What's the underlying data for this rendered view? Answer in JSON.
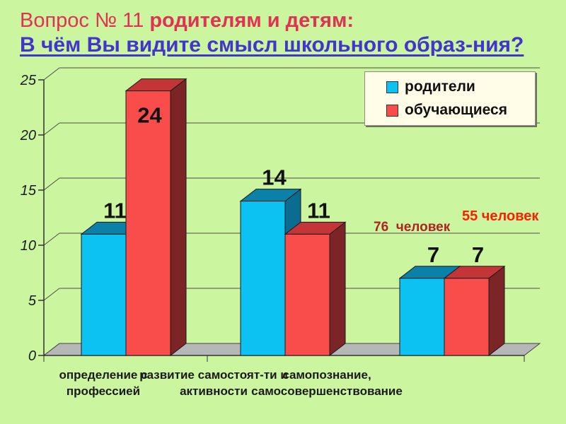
{
  "title": {
    "line1_normal": "Вопрос № 11 ",
    "line1_bold": "родителям и детям:",
    "line2": "В чём Вы видите смысл школьного образ-ния?",
    "line1_color": "#e23253",
    "line2_color": "#4136cc"
  },
  "annotations": [
    {
      "text": "76  человек",
      "color": "#b22222"
    },
    {
      "text": "55 человек",
      "color": "#fc2000"
    }
  ],
  "chart_data": {
    "type": "bar",
    "projection": "3d",
    "title": "",
    "xlabel": "",
    "ylabel": "",
    "categories": [
      [
        "определение с",
        "профессией"
      ],
      [
        "развитие самостоят-ти и",
        "активности"
      ],
      [
        "самопознание,",
        "самосовершенствование"
      ]
    ],
    "series": [
      {
        "name": "родители",
        "values": [
          11,
          14,
          7
        ],
        "colors": {
          "front": "#0cc2f2",
          "top": "#0c81a8",
          "side": "#0a6c90"
        }
      },
      {
        "name": "обучающиеся",
        "values": [
          24,
          11,
          7
        ],
        "colors": {
          "front": "#f94d4c",
          "top": "#c43537",
          "side": "#7c2527"
        }
      }
    ],
    "ylim": [
      0,
      25
    ],
    "yticks": [
      0,
      5,
      10,
      15,
      20,
      25
    ],
    "grid": true,
    "legend_position": "top-right",
    "background_color": "#cbf59e",
    "floor_color": "#b7b7b7"
  }
}
